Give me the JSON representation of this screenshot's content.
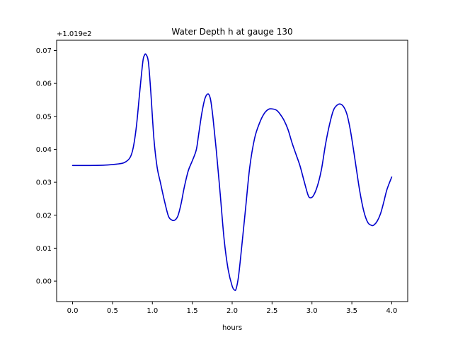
{
  "chart_data": {
    "type": "line",
    "title": "Water Depth h at gauge 130",
    "xlabel": "hours",
    "ylabel": "",
    "offset_text": "+1.019e2",
    "xlim": [
      -0.2,
      4.2
    ],
    "ylim": [
      -0.0062,
      0.0731
    ],
    "x_ticks": [
      0.0,
      0.5,
      1.0,
      1.5,
      2.0,
      2.5,
      3.0,
      3.5,
      4.0
    ],
    "x_tick_labels": [
      "0.0",
      "0.5",
      "1.0",
      "1.5",
      "2.0",
      "2.5",
      "3.0",
      "3.5",
      "4.0"
    ],
    "y_ticks": [
      0.0,
      0.01,
      0.02,
      0.03,
      0.04,
      0.05,
      0.06,
      0.07
    ],
    "y_tick_labels": [
      "0.00",
      "0.01",
      "0.02",
      "0.03",
      "0.04",
      "0.05",
      "0.06",
      "0.07"
    ],
    "grid": false,
    "legend": "none",
    "series": [
      {
        "color": "#0000cc",
        "x": [
          0.0,
          0.2,
          0.4,
          0.55,
          0.65,
          0.72,
          0.76,
          0.8,
          0.84,
          0.88,
          0.9,
          0.92,
          0.95,
          0.98,
          1.02,
          1.06,
          1.1,
          1.15,
          1.2,
          1.24,
          1.28,
          1.32,
          1.36,
          1.4,
          1.45,
          1.5,
          1.55,
          1.58,
          1.62,
          1.66,
          1.7,
          1.73,
          1.76,
          1.8,
          1.85,
          1.9,
          1.95,
          2.0,
          2.03,
          2.05,
          2.08,
          2.12,
          2.17,
          2.22,
          2.28,
          2.34,
          2.4,
          2.46,
          2.52,
          2.56,
          2.6,
          2.65,
          2.7,
          2.75,
          2.8,
          2.85,
          2.9,
          2.95,
          2.98,
          3.02,
          3.07,
          3.12,
          3.17,
          3.22,
          3.27,
          3.32,
          3.36,
          3.4,
          3.44,
          3.48,
          3.52,
          3.56,
          3.6,
          3.65,
          3.7,
          3.75,
          3.78,
          3.82,
          3.86,
          3.9,
          3.94,
          4.0
        ],
        "y": [
          0.0351,
          0.0351,
          0.0352,
          0.0355,
          0.036,
          0.0375,
          0.0405,
          0.047,
          0.057,
          0.0665,
          0.0685,
          0.0688,
          0.0665,
          0.0575,
          0.043,
          0.0345,
          0.03,
          0.0245,
          0.0198,
          0.0186,
          0.0185,
          0.0198,
          0.0235,
          0.0285,
          0.0335,
          0.0365,
          0.0398,
          0.0445,
          0.051,
          0.0555,
          0.0568,
          0.055,
          0.0495,
          0.04,
          0.0265,
          0.0125,
          0.0035,
          -0.0015,
          -0.0027,
          -0.0023,
          0.0015,
          0.0105,
          0.0225,
          0.0345,
          0.0432,
          0.0478,
          0.0508,
          0.0522,
          0.0522,
          0.0518,
          0.0507,
          0.0488,
          0.046,
          0.042,
          0.0385,
          0.035,
          0.0305,
          0.0262,
          0.0253,
          0.026,
          0.029,
          0.034,
          0.0415,
          0.0475,
          0.0519,
          0.0535,
          0.0537,
          0.0528,
          0.0505,
          0.046,
          0.04,
          0.0335,
          0.0272,
          0.0212,
          0.0178,
          0.0169,
          0.0171,
          0.0183,
          0.0205,
          0.024,
          0.0278,
          0.0316
        ]
      }
    ]
  }
}
